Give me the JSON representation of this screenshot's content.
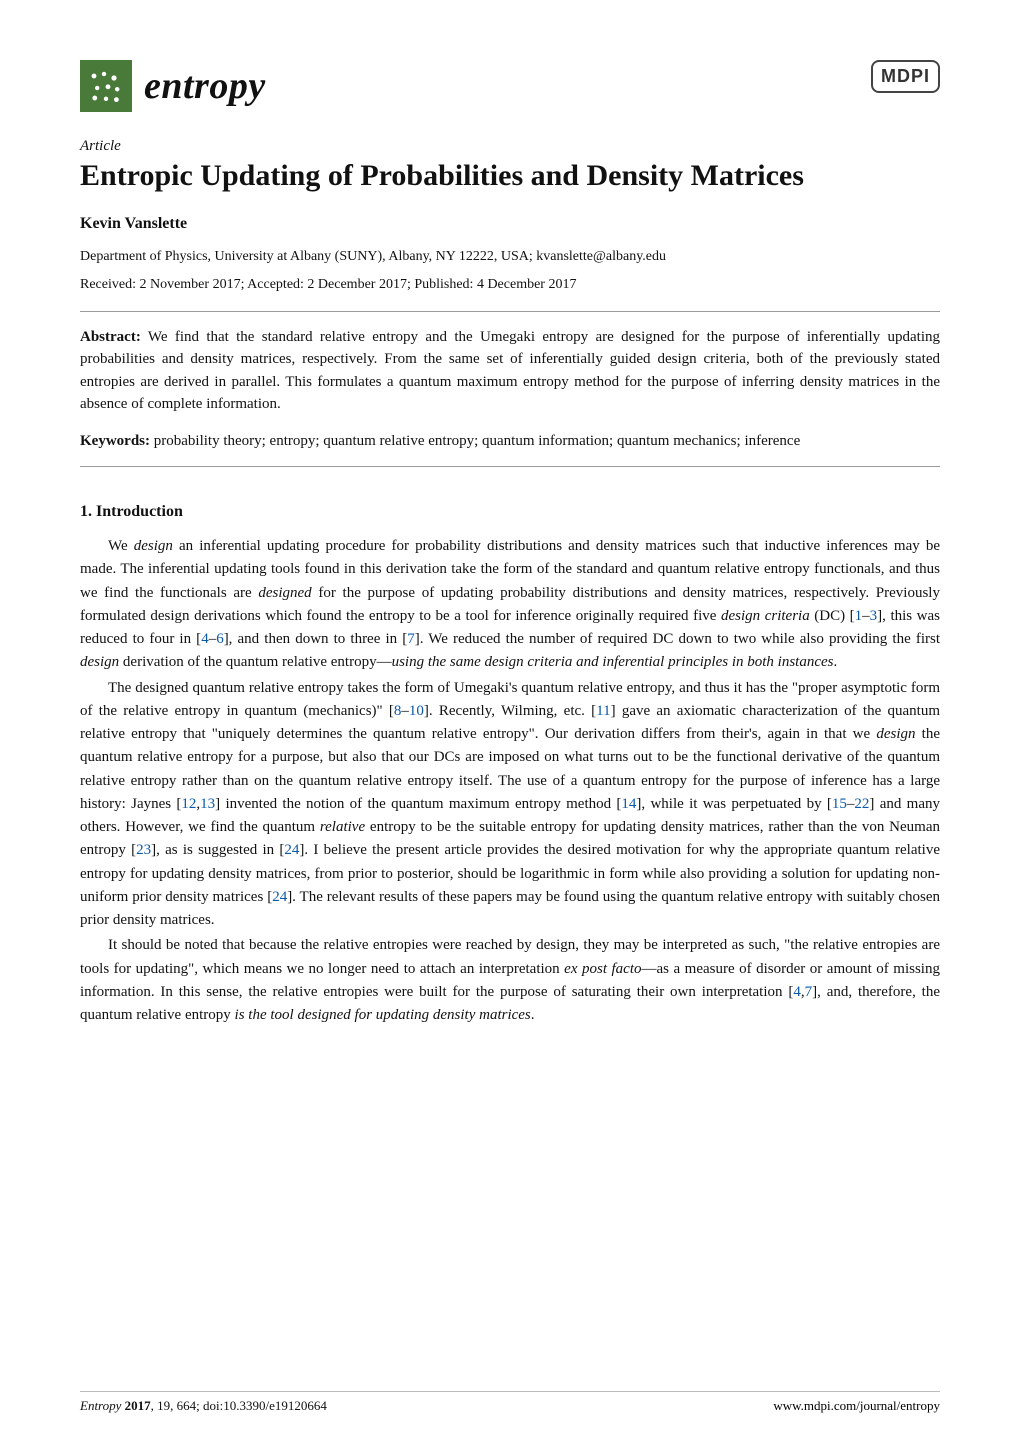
{
  "header": {
    "journal_name": "entropy",
    "publisher_logo": "MDPI",
    "logo_bg_color": "#4a7a3a"
  },
  "article": {
    "label": "Article",
    "title": "Entropic Updating of Probabilities and Density Matrices",
    "author": "Kevin Vanslette",
    "affiliation": "Department of Physics, University at Albany (SUNY), Albany, NY 12222, USA; kvanslette@albany.edu",
    "dates": "Received: 2 November 2017; Accepted: 2 December 2017; Published: 4 December 2017",
    "abstract_label": "Abstract:",
    "abstract_text": " We find that the standard relative entropy and the Umegaki entropy are designed for the purpose of inferentially updating probabilities and density matrices, respectively. From the same set of inferentially guided design criteria, both of the previously stated entropies are derived in parallel. This formulates a quantum maximum entropy method for the purpose of inferring density matrices in the absence of complete information.",
    "keywords_label": "Keywords:",
    "keywords_text": " probability theory; entropy; quantum relative entropy; quantum information; quantum mechanics; inference"
  },
  "section": {
    "heading": "1. Introduction"
  },
  "paragraphs": {
    "p1_a": "We ",
    "p1_b": "design",
    "p1_c": " an inferential updating procedure for probability distributions and density matrices such that inductive inferences may be made. The inferential updating tools found in this derivation take the form of the standard and quantum relative entropy functionals, and thus we find the functionals are ",
    "p1_d": "designed",
    "p1_e": " for the purpose of updating probability distributions and density matrices, respectively. Previously formulated design derivations which found the entropy to be a tool for inference originally required five ",
    "p1_f": "design criteria",
    "p1_g": " (DC) [",
    "p1_ref1": "1",
    "p1_h": "–",
    "p1_ref2": "3",
    "p1_i": "], this was reduced to four in [",
    "p1_ref3": "4",
    "p1_j": "–",
    "p1_ref4": "6",
    "p1_k": "], and then down to three in [",
    "p1_ref5": "7",
    "p1_l": "]. We reduced the number of required DC down to two while also providing the first ",
    "p1_m": "design",
    "p1_n": " derivation of the quantum relative entropy—",
    "p1_o": "using the same design criteria and inferential principles in both instances",
    "p1_p": ".",
    "p2_a": "The designed quantum relative entropy takes the form of Umegaki's quantum relative entropy, and thus it has the \"proper asymptotic form of the relative entropy in quantum (mechanics)\" [",
    "p2_ref1": "8",
    "p2_b": "–",
    "p2_ref2": "10",
    "p2_c": "]. Recently, Wilming, etc. [",
    "p2_ref3": "11",
    "p2_d": "] gave an axiomatic characterization of the quantum relative entropy that \"uniquely determines the quantum relative entropy\". Our derivation differs from their's, again in that we ",
    "p2_e": "design",
    "p2_f": " the quantum relative entropy for a purpose, but also that our DCs are imposed on what turns out to be the functional derivative of the quantum relative entropy rather than on the quantum relative entropy itself. The use of a quantum entropy for the purpose of inference has a large history: Jaynes [",
    "p2_ref4": "12",
    "p2_g": ",",
    "p2_ref5": "13",
    "p2_h": "] invented the notion of the quantum maximum entropy method [",
    "p2_ref6": "14",
    "p2_i": "], while it was perpetuated by [",
    "p2_ref7": "15",
    "p2_j": "–",
    "p2_ref8": "22",
    "p2_k": "] and many others. However, we find the quantum ",
    "p2_l": "relative",
    "p2_m": " entropy to be the suitable entropy for updating density matrices, rather than the von Neuman entropy [",
    "p2_ref9": "23",
    "p2_n": "], as is suggested in [",
    "p2_ref10": "24",
    "p2_o": "]. I believe the present article provides the desired motivation for why the appropriate quantum relative entropy for updating density matrices, from prior to posterior, should be logarithmic in form while also providing a solution for updating non-uniform prior density matrices [",
    "p2_ref11": "24",
    "p2_p": "]. The relevant results of these papers may be found using the quantum relative entropy with suitably chosen prior density matrices.",
    "p3_a": "It should be noted that because the relative entropies were reached by design, they may be interpreted as such, \"the relative entropies are tools for updating\", which means we no longer need to attach an interpretation ",
    "p3_b": "ex post facto",
    "p3_c": "—as a measure of disorder or amount of missing information. In this sense, the relative entropies were built for the purpose of saturating their own interpretation [",
    "p3_ref1": "4",
    "p3_d": ",",
    "p3_ref2": "7",
    "p3_e": "], and, therefore, the quantum relative entropy ",
    "p3_f": "is the tool designed for updating density matrices",
    "p3_g": "."
  },
  "footer": {
    "left_italic": "Entropy ",
    "left_bold": "2017",
    "left_rest": ", 19, 664; doi:10.3390/e19120664",
    "right": "www.mdpi.com/journal/entropy"
  },
  "colors": {
    "link_color": "#0a58a8",
    "text_color": "#111111",
    "rule_color": "#999999"
  }
}
